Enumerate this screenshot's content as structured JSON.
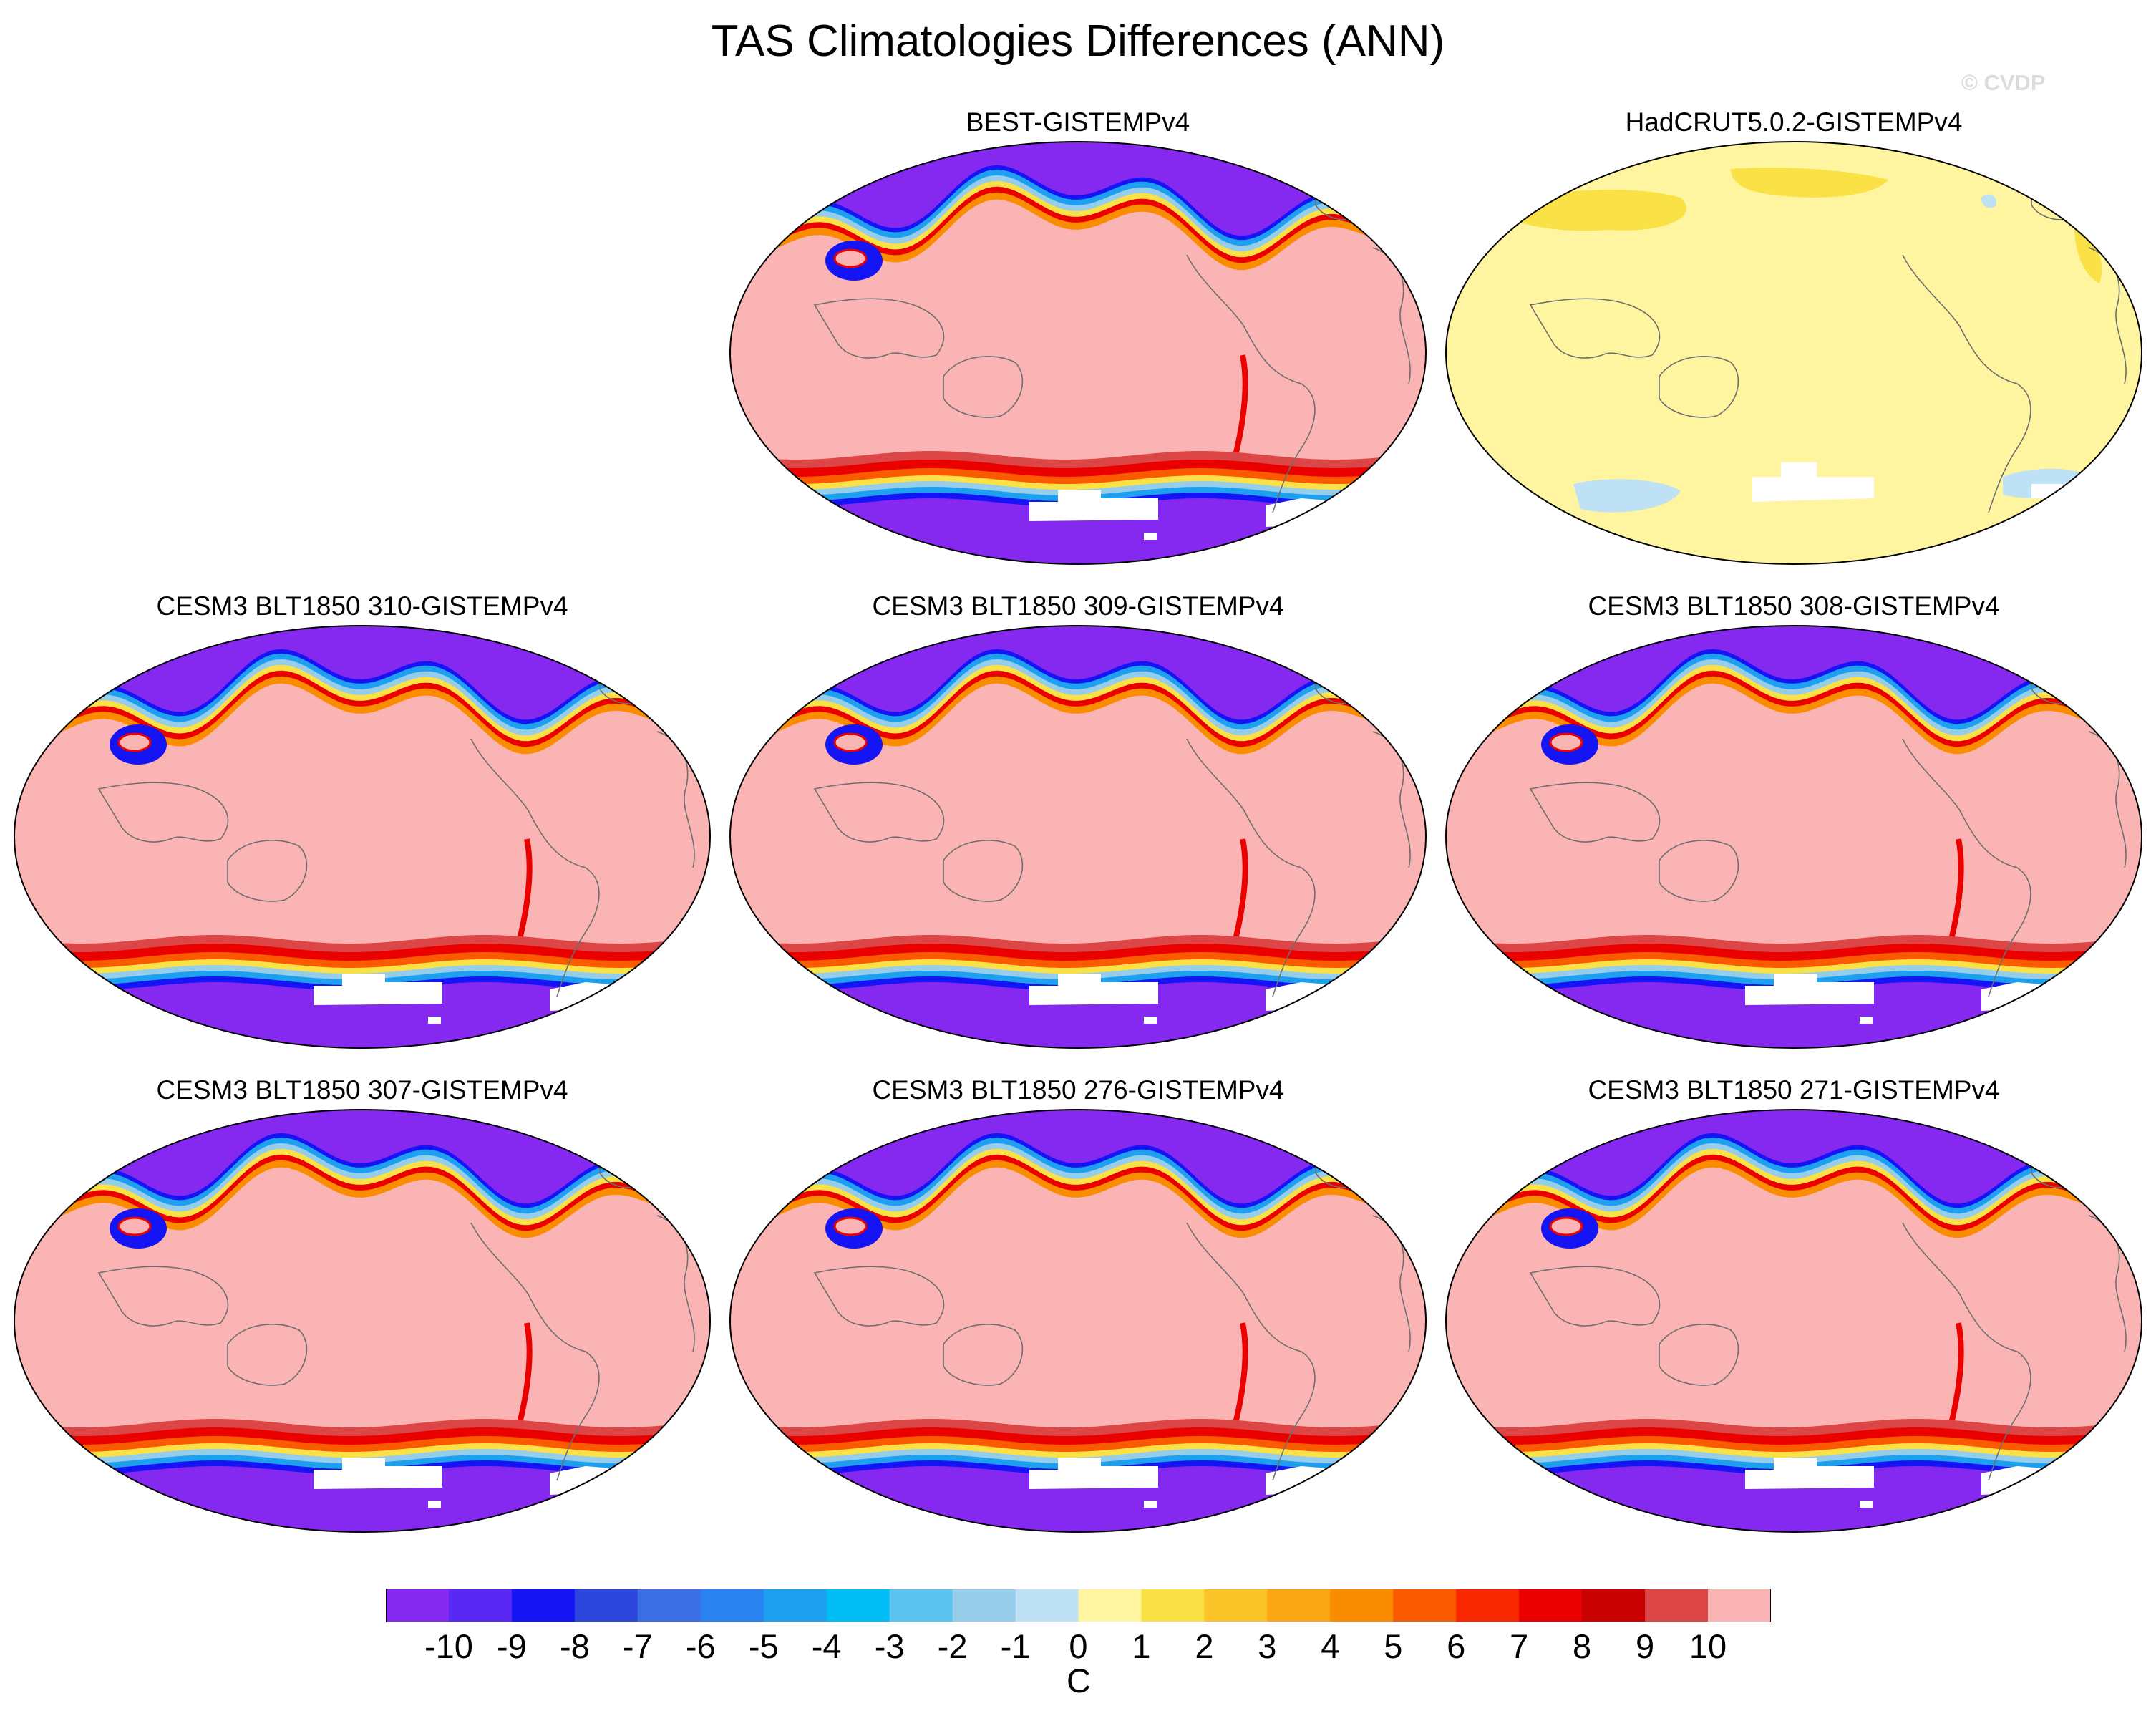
{
  "title": "TAS Climatologies Differences (ANN)",
  "watermark": "© CVDP",
  "panels": [
    {
      "title": "BEST-GISTEMPv4",
      "pattern": "model"
    },
    {
      "title": "HadCRUT5.0.2-GISTEMPv4",
      "pattern": "obs"
    },
    {
      "title": "CESM3 BLT1850 310-GISTEMPv4",
      "pattern": "model"
    },
    {
      "title": "CESM3 BLT1850 309-GISTEMPv4",
      "pattern": "model"
    },
    {
      "title": "CESM3 BLT1850 308-GISTEMPv4",
      "pattern": "model"
    },
    {
      "title": "CESM3 BLT1850 307-GISTEMPv4",
      "pattern": "model"
    },
    {
      "title": "CESM3 BLT1850 276-GISTEMPv4",
      "pattern": "model"
    },
    {
      "title": "CESM3 BLT1850 271-GISTEMPv4",
      "pattern": "model"
    }
  ],
  "colorbar": {
    "labels": [
      "-10",
      "-9",
      "-8",
      "-7",
      "-6",
      "-5",
      "-4",
      "-3",
      "-2",
      "-1",
      "0",
      "1",
      "2",
      "3",
      "4",
      "5",
      "6",
      "7",
      "8",
      "9",
      "10"
    ],
    "colors": [
      "#8528f0",
      "#5a28f5",
      "#1414f5",
      "#2d46dc",
      "#3c6ee6",
      "#2882f0",
      "#1ea0f0",
      "#00bef5",
      "#5ac3f0",
      "#96cdeb",
      "#bee1f5",
      "#fff5a0",
      "#fae146",
      "#fac328",
      "#faa514",
      "#fa8c00",
      "#fa5a00",
      "#fa2800",
      "#eb0000",
      "#c80000",
      "#dc4646",
      "#fbb4b4"
    ],
    "units": "C"
  },
  "colors": {
    "background_model": "#fbb4b4",
    "background_obs": "#fff5a0",
    "warm_band": "#dc4646",
    "cold_core": "#8528f0"
  }
}
